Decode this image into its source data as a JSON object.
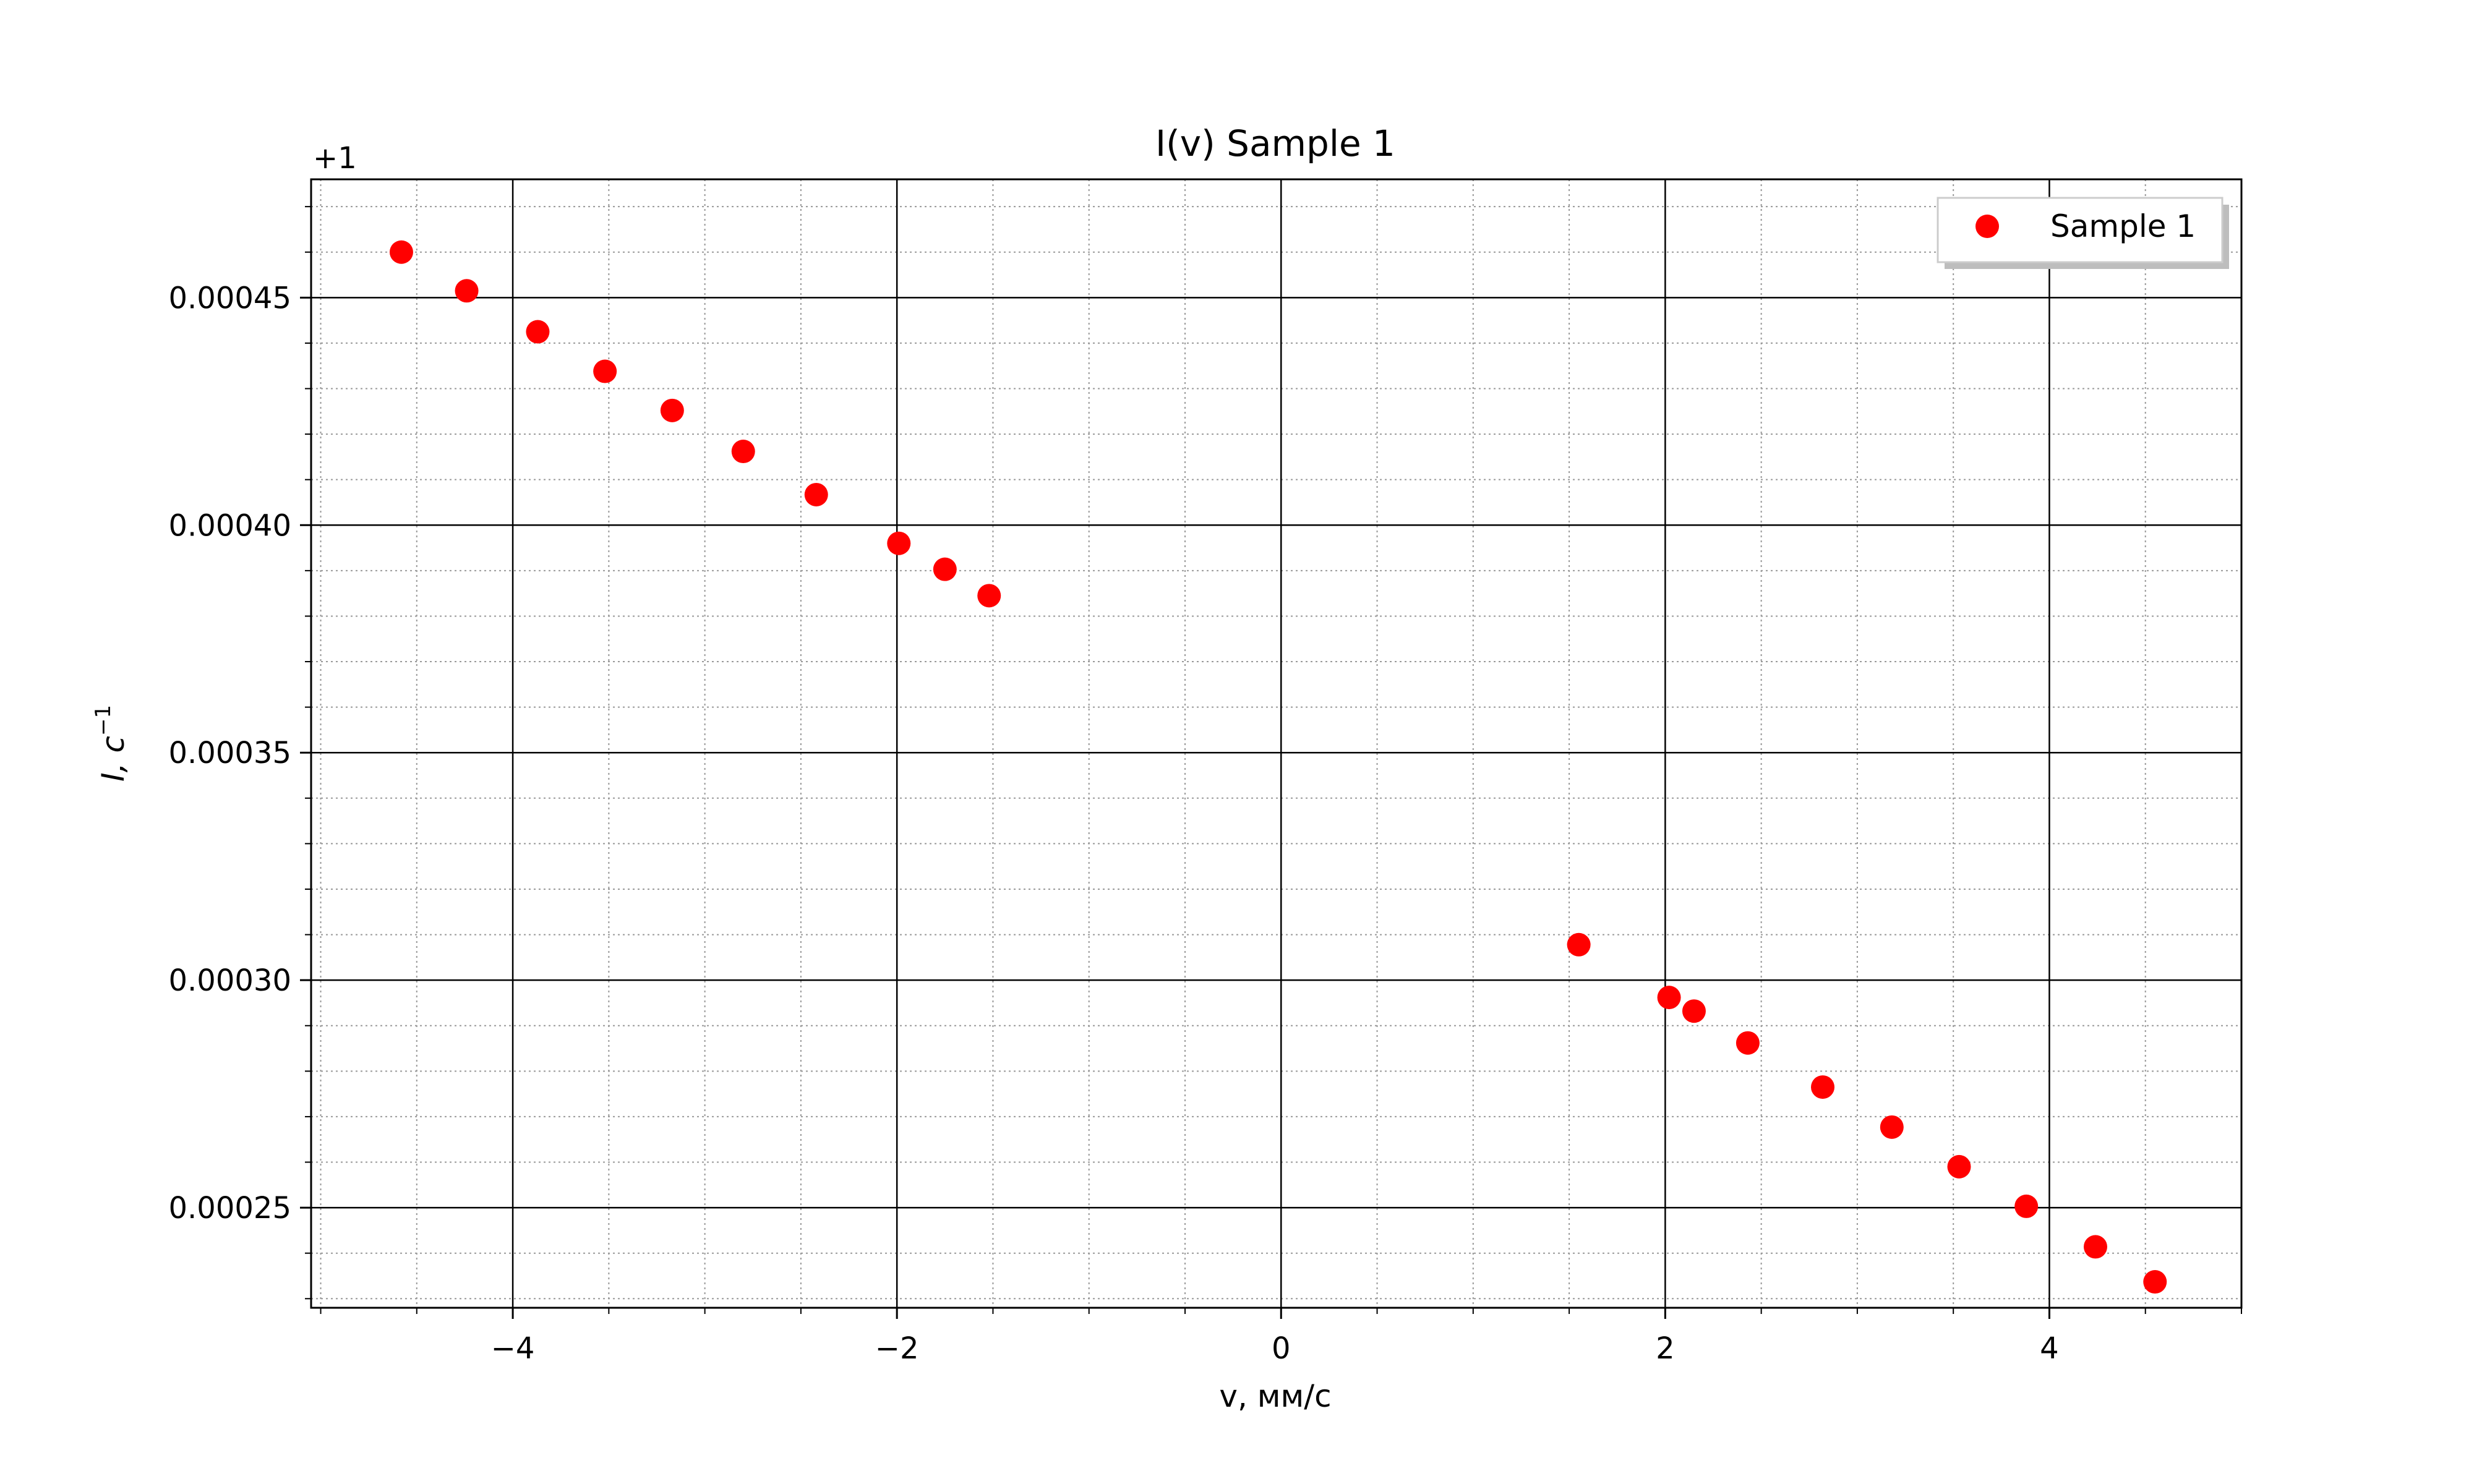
{
  "chart_data": {
    "type": "scatter",
    "title": "I(v) Sample 1",
    "xlabel": "v, мм/с",
    "ylabel_main": "I, c",
    "ylabel_exp": "−1",
    "offset_text": "+1",
    "xlim": [
      -5.05,
      5.0
    ],
    "ylim": [
      0.000228,
      0.000476
    ],
    "x_ticks": [
      -4,
      -2,
      0,
      2,
      4
    ],
    "x_tick_labels": [
      "−4",
      "−2",
      "0",
      "2",
      "4"
    ],
    "y_ticks": [
      0.00025,
      0.0003,
      0.00035,
      0.0004,
      0.00045
    ],
    "y_tick_labels": [
      "0.00025",
      "0.00030",
      "0.00035",
      "0.00040",
      "0.00045"
    ],
    "grid": true,
    "minor_grid": true,
    "legend_position": "top-right",
    "series": [
      {
        "name": "Sample 1",
        "color": "#ff0000",
        "points": [
          [
            -4.58,
            0.00046
          ],
          [
            -4.24,
            0.0004515
          ],
          [
            -3.87,
            0.0004425
          ],
          [
            -3.52,
            0.0004338
          ],
          [
            -3.17,
            0.0004252
          ],
          [
            -2.8,
            0.0004162
          ],
          [
            -2.42,
            0.0004067
          ],
          [
            -1.99,
            0.000396
          ],
          [
            -1.75,
            0.0003903
          ],
          [
            -1.52,
            0.0003845
          ],
          [
            1.55,
            0.0003078
          ],
          [
            2.02,
            0.0002962
          ],
          [
            2.15,
            0.0002932
          ],
          [
            2.43,
            0.0002862
          ],
          [
            2.82,
            0.0002765
          ],
          [
            3.18,
            0.0002677
          ],
          [
            3.53,
            0.000259
          ],
          [
            3.88,
            0.0002503
          ],
          [
            4.24,
            0.0002414
          ],
          [
            4.55,
            0.0002337
          ]
        ]
      }
    ]
  }
}
